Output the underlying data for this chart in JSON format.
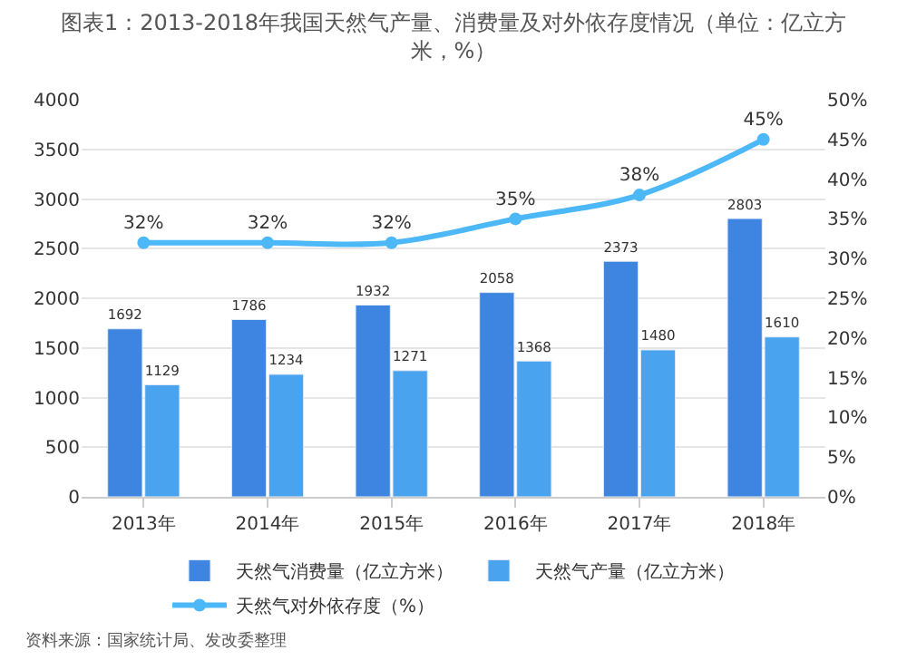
{
  "chart_data": {
    "type": "bar",
    "title": "图表1：2013-2018年我国天然气产量、消费量及对外依存度情况（单位：亿立方米，%）",
    "categories": [
      "2013年",
      "2014年",
      "2015年",
      "2016年",
      "2017年",
      "2018年"
    ],
    "series": [
      {
        "name": "天然气消费量（亿立方米）",
        "color": "#3d85e0",
        "values": [
          1692,
          1786,
          1932,
          2058,
          2373,
          2803
        ]
      },
      {
        "name": "天然气产量（亿立方米）",
        "color": "#4aa3ee",
        "values": [
          1129,
          1234,
          1271,
          1368,
          1480,
          1610
        ]
      },
      {
        "name": "天然气对外依存度（%）",
        "type": "line",
        "axis": "y2",
        "color": "#4db8f8",
        "values": [
          32,
          32,
          32,
          35,
          38,
          45
        ],
        "value_labels": [
          "32%",
          "32%",
          "32%",
          "35%",
          "38%",
          "45%"
        ]
      }
    ],
    "data_labels": true,
    "ylim": [
      0,
      4000
    ],
    "yticks": [
      0,
      500,
      1000,
      1500,
      2000,
      2500,
      3000,
      3500,
      4000
    ],
    "y2lim": [
      0,
      50
    ],
    "y2ticks": [
      {
        "value": 0,
        "label": "0%"
      },
      {
        "value": 5,
        "label": "5%"
      },
      {
        "value": 10,
        "label": "10%"
      },
      {
        "value": 15,
        "label": "15%"
      },
      {
        "value": 20,
        "label": "20%"
      },
      {
        "value": 25,
        "label": "25%"
      },
      {
        "value": 30,
        "label": "30%"
      },
      {
        "value": 35,
        "label": "35%"
      },
      {
        "value": 40,
        "label": "40%"
      },
      {
        "value": 45,
        "label": "45%"
      },
      {
        "value": 50,
        "label": "50%"
      }
    ],
    "grid": "y",
    "legend": "bottom",
    "marker": "circle",
    "line_style": "solid",
    "annotations": [
      "资料来源：国家统计局、发改委整理"
    ]
  }
}
